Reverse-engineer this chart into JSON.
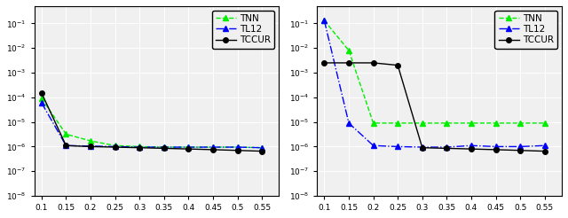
{
  "x": [
    0.1,
    0.15,
    0.2,
    0.25,
    0.3,
    0.35,
    0.4,
    0.45,
    0.5,
    0.55
  ],
  "left_TNN": [
    9e-05,
    3.2e-06,
    1.7e-06,
    1.1e-06,
    1e-06,
    9.5e-07,
    9.5e-07,
    9.5e-07,
    9.5e-07,
    9e-07
  ],
  "left_TL12": [
    6e-05,
    1.1e-06,
    1.05e-06,
    1e-06,
    9.5e-07,
    9.5e-07,
    9.5e-07,
    9.5e-07,
    9.5e-07,
    9e-07
  ],
  "left_TCCUR": [
    0.00015,
    1.1e-06,
    1e-06,
    9.5e-07,
    9e-07,
    8.5e-07,
    8e-07,
    7.5e-07,
    7e-07,
    6.5e-07
  ],
  "right_TNN": [
    0.13,
    0.008,
    9e-06,
    9e-06,
    9e-06,
    9e-06,
    9e-06,
    9e-06,
    9e-06,
    9e-06
  ],
  "right_TL12": [
    0.13,
    9e-06,
    1.1e-06,
    1e-06,
    9.5e-07,
    9.5e-07,
    1.1e-06,
    1e-06,
    1e-06,
    1.1e-06
  ],
  "right_TCCUR": [
    0.0025,
    0.0025,
    0.0025,
    0.002,
    9e-07,
    8.5e-07,
    8e-07,
    7.5e-07,
    7e-07,
    6.5e-07
  ],
  "yticks": [
    1e-08,
    1e-07,
    1e-06,
    1e-05,
    0.0001,
    0.001,
    0.01,
    0.1
  ],
  "ylim": [
    1e-08,
    0.5
  ],
  "xlim": [
    0.085,
    0.585
  ],
  "TNN_color": "#00ee00",
  "TL12_color": "#0000ff",
  "TCCUR_color": "#000000",
  "legend_fontsize": 7.5,
  "tick_fontsize": 6.5,
  "linewidth": 1.0,
  "markersize": 4,
  "bg_color": "#f0f0f0",
  "grid_color": "#ffffff"
}
